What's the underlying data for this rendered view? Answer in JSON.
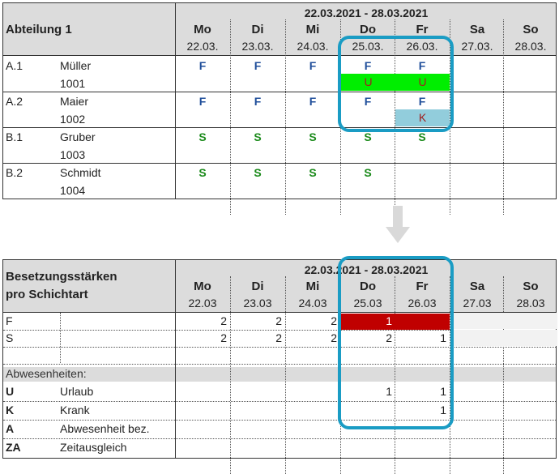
{
  "top": {
    "title": "Abteilung 1",
    "range": "22.03.2021 - 28.03.2021",
    "days": [
      {
        "name": "Mo",
        "date": "22.03."
      },
      {
        "name": "Di",
        "date": "23.03."
      },
      {
        "name": "Mi",
        "date": "24.03."
      },
      {
        "name": "Do",
        "date": "25.03."
      },
      {
        "name": "Fr",
        "date": "26.03."
      },
      {
        "name": "Sa",
        "date": "27.03."
      },
      {
        "name": "So",
        "date": "28.03."
      }
    ],
    "rows": [
      {
        "code": "A.1",
        "name": "Müller",
        "id": "1001",
        "shifts": [
          "F",
          "F",
          "F",
          "F",
          "F",
          "",
          ""
        ],
        "absences": [
          "",
          "",
          "",
          "U",
          "U",
          "",
          ""
        ]
      },
      {
        "code": "A.2",
        "name": "Maier",
        "id": "1002",
        "shifts": [
          "F",
          "F",
          "F",
          "F",
          "F",
          "",
          ""
        ],
        "absences": [
          "",
          "",
          "",
          "",
          "K",
          "",
          ""
        ]
      },
      {
        "code": "B.1",
        "name": "Gruber",
        "id": "1003",
        "shifts": [
          "S",
          "S",
          "S",
          "S",
          "S",
          "",
          ""
        ],
        "absences": [
          "",
          "",
          "",
          "",
          "",
          "",
          ""
        ]
      },
      {
        "code": "B.2",
        "name": "Schmidt",
        "id": "1004",
        "shifts": [
          "S",
          "S",
          "S",
          "S",
          "",
          "",
          ""
        ],
        "absences": [
          "",
          "",
          "",
          "",
          "",
          "",
          ""
        ]
      }
    ],
    "absence_colors": {
      "U": "#00ee00",
      "K": "#92cddc"
    }
  },
  "bottom": {
    "title_line1": "Besetzungsstärken",
    "title_line2": "pro Schichtart",
    "range": "22.03.2021 - 28.03.2021",
    "days": [
      {
        "name": "Mo",
        "date": "22.03"
      },
      {
        "name": "Di",
        "date": "23.03"
      },
      {
        "name": "Mi",
        "date": "24.03"
      },
      {
        "name": "Do",
        "date": "25.03"
      },
      {
        "name": "Fr",
        "date": "26.03"
      },
      {
        "name": "Sa",
        "date": "27.03"
      },
      {
        "name": "So",
        "date": "28.03"
      }
    ],
    "shift_rows": [
      {
        "code": "F",
        "values": [
          "2",
          "2",
          "2",
          "1",
          "",
          "",
          ""
        ],
        "alert_days": [
          3,
          4
        ]
      },
      {
        "code": "S",
        "values": [
          "2",
          "2",
          "2",
          "2",
          "1",
          "",
          ""
        ],
        "alert_days": []
      },
      {
        "code": "",
        "values": [
          "",
          "",
          "",
          "",
          "",
          "",
          ""
        ],
        "alert_days": []
      }
    ],
    "absence_header": "Abwesenheiten:",
    "absence_rows": [
      {
        "code": "U",
        "label": "Urlaub",
        "values": [
          "",
          "",
          "",
          "1",
          "1",
          "",
          ""
        ]
      },
      {
        "code": "K",
        "label": "Krank",
        "values": [
          "",
          "",
          "",
          "",
          "1",
          "",
          ""
        ]
      },
      {
        "code": "A",
        "label": "Abwesenheit bez.",
        "values": [
          "",
          "",
          "",
          "",
          "",
          "",
          ""
        ]
      },
      {
        "code": "ZA",
        "label": "Zeitausgleich",
        "values": [
          "",
          "",
          "",
          "",
          "",
          "",
          ""
        ]
      }
    ],
    "alert_color": "#c00000"
  },
  "colors": {
    "highlight": "#1a9cc4",
    "header_bg": "#dcdcdc"
  }
}
